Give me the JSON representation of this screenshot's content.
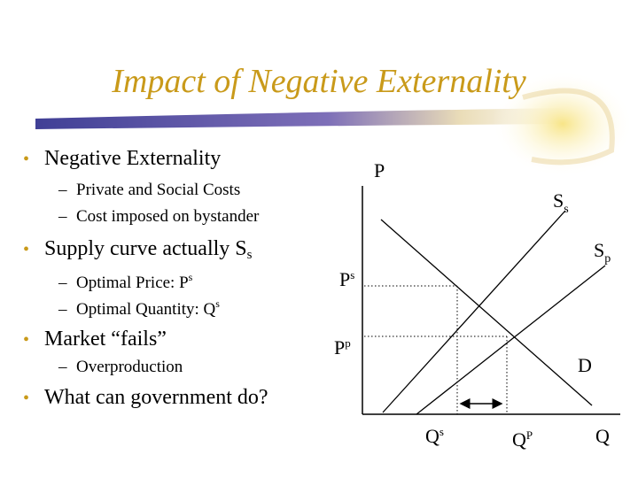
{
  "slide": {
    "title": "Impact of Negative Externality",
    "bullets": [
      {
        "text": "Negative Externality",
        "level": 1
      },
      {
        "text": "Private and Social Costs",
        "level": 2
      },
      {
        "text": "Cost imposed on bystander",
        "level": 2
      },
      {
        "text": "Supply curve actually S",
        "sub": "s",
        "level": 1
      },
      {
        "text": "Optimal Price: P",
        "sup": "s",
        "level": 2
      },
      {
        "text": "Optimal Quantity: Q",
        "sup": "s",
        "level": 2
      },
      {
        "text": "Market “fails”",
        "level": 1
      },
      {
        "text": "Overproduction",
        "level": 2
      },
      {
        "text": "What can government do?",
        "level": 1
      }
    ]
  },
  "diagram": {
    "axis_y_label": "P",
    "axis_x_label": "Q",
    "curve_ss_label": "S",
    "curve_ss_sub": "s",
    "curve_sp_label": "S",
    "curve_sp_sub": "p",
    "curve_d_label": "D",
    "price_social_label": "P",
    "price_social_sup": "s",
    "price_private_label": "P",
    "price_private_sup": "p",
    "qty_social_label": "Q",
    "qty_social_sup": "s",
    "qty_private_label": "Q",
    "qty_private_sup": "P"
  },
  "colors": {
    "title": "#c99a1a",
    "bullet": "#c99a1a",
    "swoosh_dark": "#3a2f8a",
    "swoosh_light": "#f0c040"
  }
}
